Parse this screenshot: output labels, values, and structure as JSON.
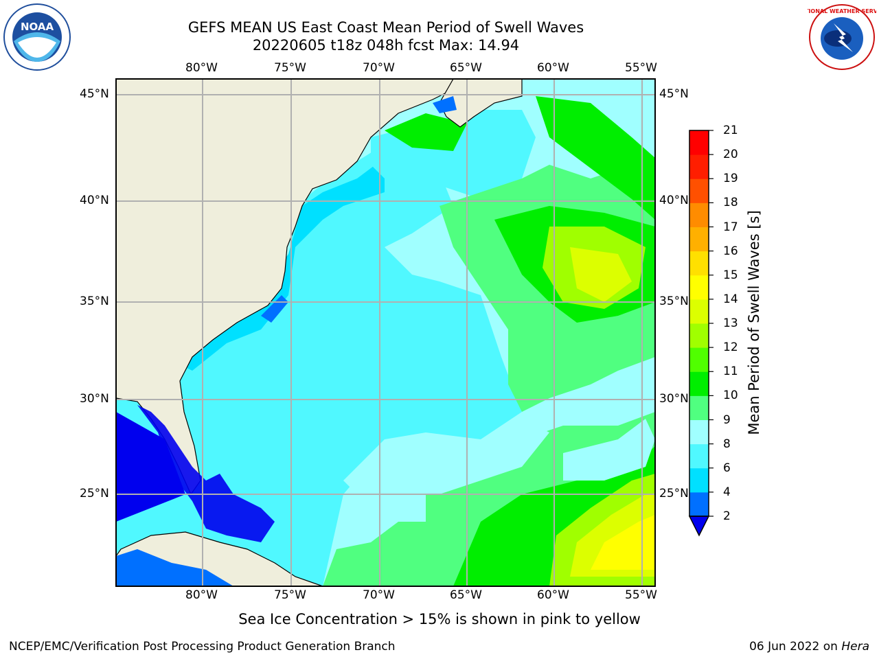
{
  "title_line1": "GEFS MEAN US East Coast Mean Period of Swell Waves",
  "title_line2": "20220605 t18z 048h fcst   Max: 14.94",
  "lon_ticks": [
    "80°W",
    "75°W",
    "70°W",
    "65°W",
    "60°W",
    "55°W"
  ],
  "lat_ticks": [
    "45°N",
    "40°N",
    "35°N",
    "30°N",
    "25°N"
  ],
  "colorbar": {
    "label": "Mean Period of Swell Waves [s]",
    "ticks": [
      "21",
      "20",
      "19",
      "18",
      "17",
      "16",
      "15",
      "14",
      "13",
      "12",
      "11",
      "10",
      "9",
      "8",
      "6",
      "4",
      "2"
    ],
    "colors": [
      "#0000ee",
      "#0070ff",
      "#00e0ff",
      "#50f8ff",
      "#a0ffff",
      "#50ff80",
      "#00ee00",
      "#50ff00",
      "#a0ff00",
      "#dcff00",
      "#ffff00",
      "#ffe000",
      "#ffb000",
      "#ff8c00",
      "#ff5000",
      "#ff1e00",
      "#ff0000"
    ]
  },
  "ice_note": "Sea Ice Concentration > 15% is shown in pink to yellow",
  "credit_left": "NCEP/EMC/Verification Post Processing Product Generation Branch",
  "credit_date": "06 Jun 2022 on",
  "credit_host": "Hera",
  "logos": {
    "noaa_text": "NOAA",
    "nws_text": "NATIONAL WEATHER SERVICE"
  }
}
